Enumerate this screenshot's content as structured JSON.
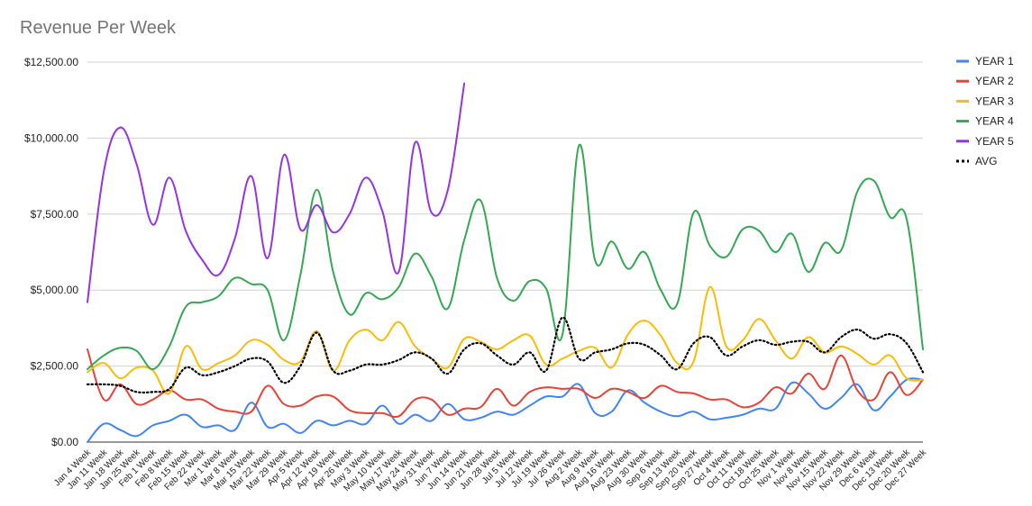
{
  "chart_data": {
    "type": "line",
    "title": "Revenue Per Week",
    "xlabel": "",
    "ylabel": "",
    "ylim": [
      0,
      12500
    ],
    "y_ticks": [
      "$0.00",
      "$2,500.00",
      "$5,000.00",
      "$7,500.00",
      "$10,000.00",
      "$12,500.00"
    ],
    "grid": true,
    "legend_position": "right",
    "categories": [
      "Jan 4 Week",
      "Jan 11 Week",
      "Jan 18 Week",
      "Jan 25 Week",
      "Feb 1 Week",
      "Feb 8 Week",
      "Feb 15 Week",
      "Feb 22 Week",
      "Mar 1 Week",
      "Mar 8 Week",
      "Mar 15 Week",
      "Mar 22 Week",
      "Mar 29 Week",
      "Apr 5 Week",
      "Apr 12 Week",
      "Apr 19 Week",
      "Apr 26 Week",
      "May 3 Week",
      "May 10 Week",
      "May 17 Week",
      "May 24 Week",
      "May 31 Week",
      "Jun 7 Week",
      "Jun 14 Week",
      "Jun 21 Week",
      "Jun 28 Week",
      "Jul 5 Week",
      "Jul 12 Week",
      "Jul 19 Week",
      "Jul 26 Week",
      "Aug 2 Week",
      "Aug 9 Week",
      "Aug 16 Week",
      "Aug 23 Week",
      "Aug 30 Week",
      "Sep 6 Week",
      "Sep 13 Week",
      "Sep 20 Week",
      "Sep 27 Week",
      "Oct 4 Week",
      "Oct 11 Week",
      "Oct 18 Week",
      "Oct 25 Week",
      "Nov 1 Week",
      "Nov 8 Week",
      "Nov 15 Week",
      "Nov 22 Week",
      "Nov 29 Week",
      "Dec 6 Week",
      "Dec 13 Week",
      "Dec 20 Week",
      "Dec 27 Week"
    ],
    "series": [
      {
        "name": "YEAR 1",
        "color": "#4285f4",
        "dash": false,
        "values": [
          0,
          600,
          400,
          200,
          550,
          700,
          900,
          500,
          550,
          400,
          1300,
          500,
          600,
          300,
          700,
          550,
          700,
          600,
          1200,
          600,
          900,
          700,
          1250,
          750,
          800,
          1000,
          900,
          1200,
          1500,
          1500,
          1900,
          950,
          1000,
          1700,
          1300,
          1000,
          850,
          1000,
          750,
          800,
          900,
          1100,
          1100,
          1950,
          1600,
          1100,
          1450,
          1900,
          1050,
          1500,
          2050,
          2050
        ]
      },
      {
        "name": "YEAR 2",
        "color": "#ea4335",
        "dash": false,
        "values": [
          3050,
          1400,
          1900,
          1250,
          1400,
          1700,
          1400,
          1400,
          1100,
          1000,
          1000,
          1850,
          1250,
          1200,
          1500,
          1500,
          1050,
          950,
          950,
          850,
          1400,
          1400,
          900,
          1100,
          1150,
          1750,
          1200,
          1650,
          1800,
          1750,
          1750,
          1450,
          1750,
          1650,
          1450,
          1850,
          1650,
          1600,
          1400,
          1400,
          1150,
          1300,
          1800,
          1600,
          2250,
          1750,
          2850,
          1700,
          1400,
          2300,
          1550,
          2050
        ]
      },
      {
        "name": "YEAR 3",
        "color": "#fbbc04",
        "dash": false,
        "values": [
          2300,
          2600,
          2100,
          2450,
          2350,
          1600,
          3150,
          2400,
          2600,
          2850,
          3350,
          3200,
          2700,
          2650,
          3650,
          2350,
          3350,
          3700,
          3350,
          3950,
          3150,
          2750,
          2450,
          3400,
          3300,
          3050,
          3350,
          3500,
          2550,
          2750,
          3000,
          3100,
          2450,
          3550,
          4000,
          3500,
          2600,
          2650,
          5100,
          3150,
          3350,
          4050,
          3350,
          2750,
          3450,
          2950,
          3150,
          2900,
          2550,
          2850,
          2100,
          2050
        ]
      },
      {
        "name": "YEAR 4",
        "color": "#34a853",
        "dash": false,
        "values": [
          2400,
          2850,
          3100,
          3000,
          2400,
          3150,
          4450,
          4600,
          4800,
          5400,
          5200,
          5000,
          3350,
          5500,
          8300,
          5600,
          4200,
          4900,
          4700,
          5100,
          6200,
          5450,
          4400,
          6650,
          7950,
          5400,
          4650,
          5300,
          5050,
          3550,
          9750,
          5950,
          6600,
          5700,
          6250,
          5000,
          4550,
          7550,
          6450,
          6100,
          7000,
          6950,
          6250,
          6850,
          5600,
          6550,
          6300,
          8250,
          8600,
          7400,
          7350,
          3050
        ]
      },
      {
        "name": "YEAR 5",
        "color": "#9334e6",
        "dash": false,
        "values": [
          4600,
          8900,
          10350,
          9150,
          7150,
          8700,
          6950,
          6000,
          5500,
          6700,
          8750,
          6050,
          9450,
          7000,
          7800,
          6900,
          7500,
          8700,
          7600,
          5600,
          9850,
          7550,
          8300,
          11800,
          null,
          null,
          null,
          null,
          null,
          null,
          null,
          null,
          null,
          null,
          null,
          null,
          null,
          null,
          null,
          null,
          null,
          null,
          null,
          null,
          null,
          null,
          null,
          null,
          null,
          null,
          null,
          null
        ]
      },
      {
        "name": "AVG",
        "color": "#000000",
        "dash": true,
        "values": [
          1900,
          1900,
          1850,
          1650,
          1650,
          1750,
          2450,
          2200,
          2300,
          2500,
          2750,
          2650,
          1950,
          2500,
          3600,
          2350,
          2350,
          2550,
          2550,
          2700,
          2950,
          2750,
          2250,
          3050,
          3250,
          2850,
          2550,
          2950,
          2350,
          4100,
          2750,
          2950,
          3050,
          3250,
          3200,
          2850,
          2400,
          3250,
          3450,
          2850,
          3150,
          3350,
          3200,
          3300,
          3300,
          2950,
          3450,
          3700,
          3400,
          3550,
          3250,
          2300
        ]
      }
    ]
  }
}
